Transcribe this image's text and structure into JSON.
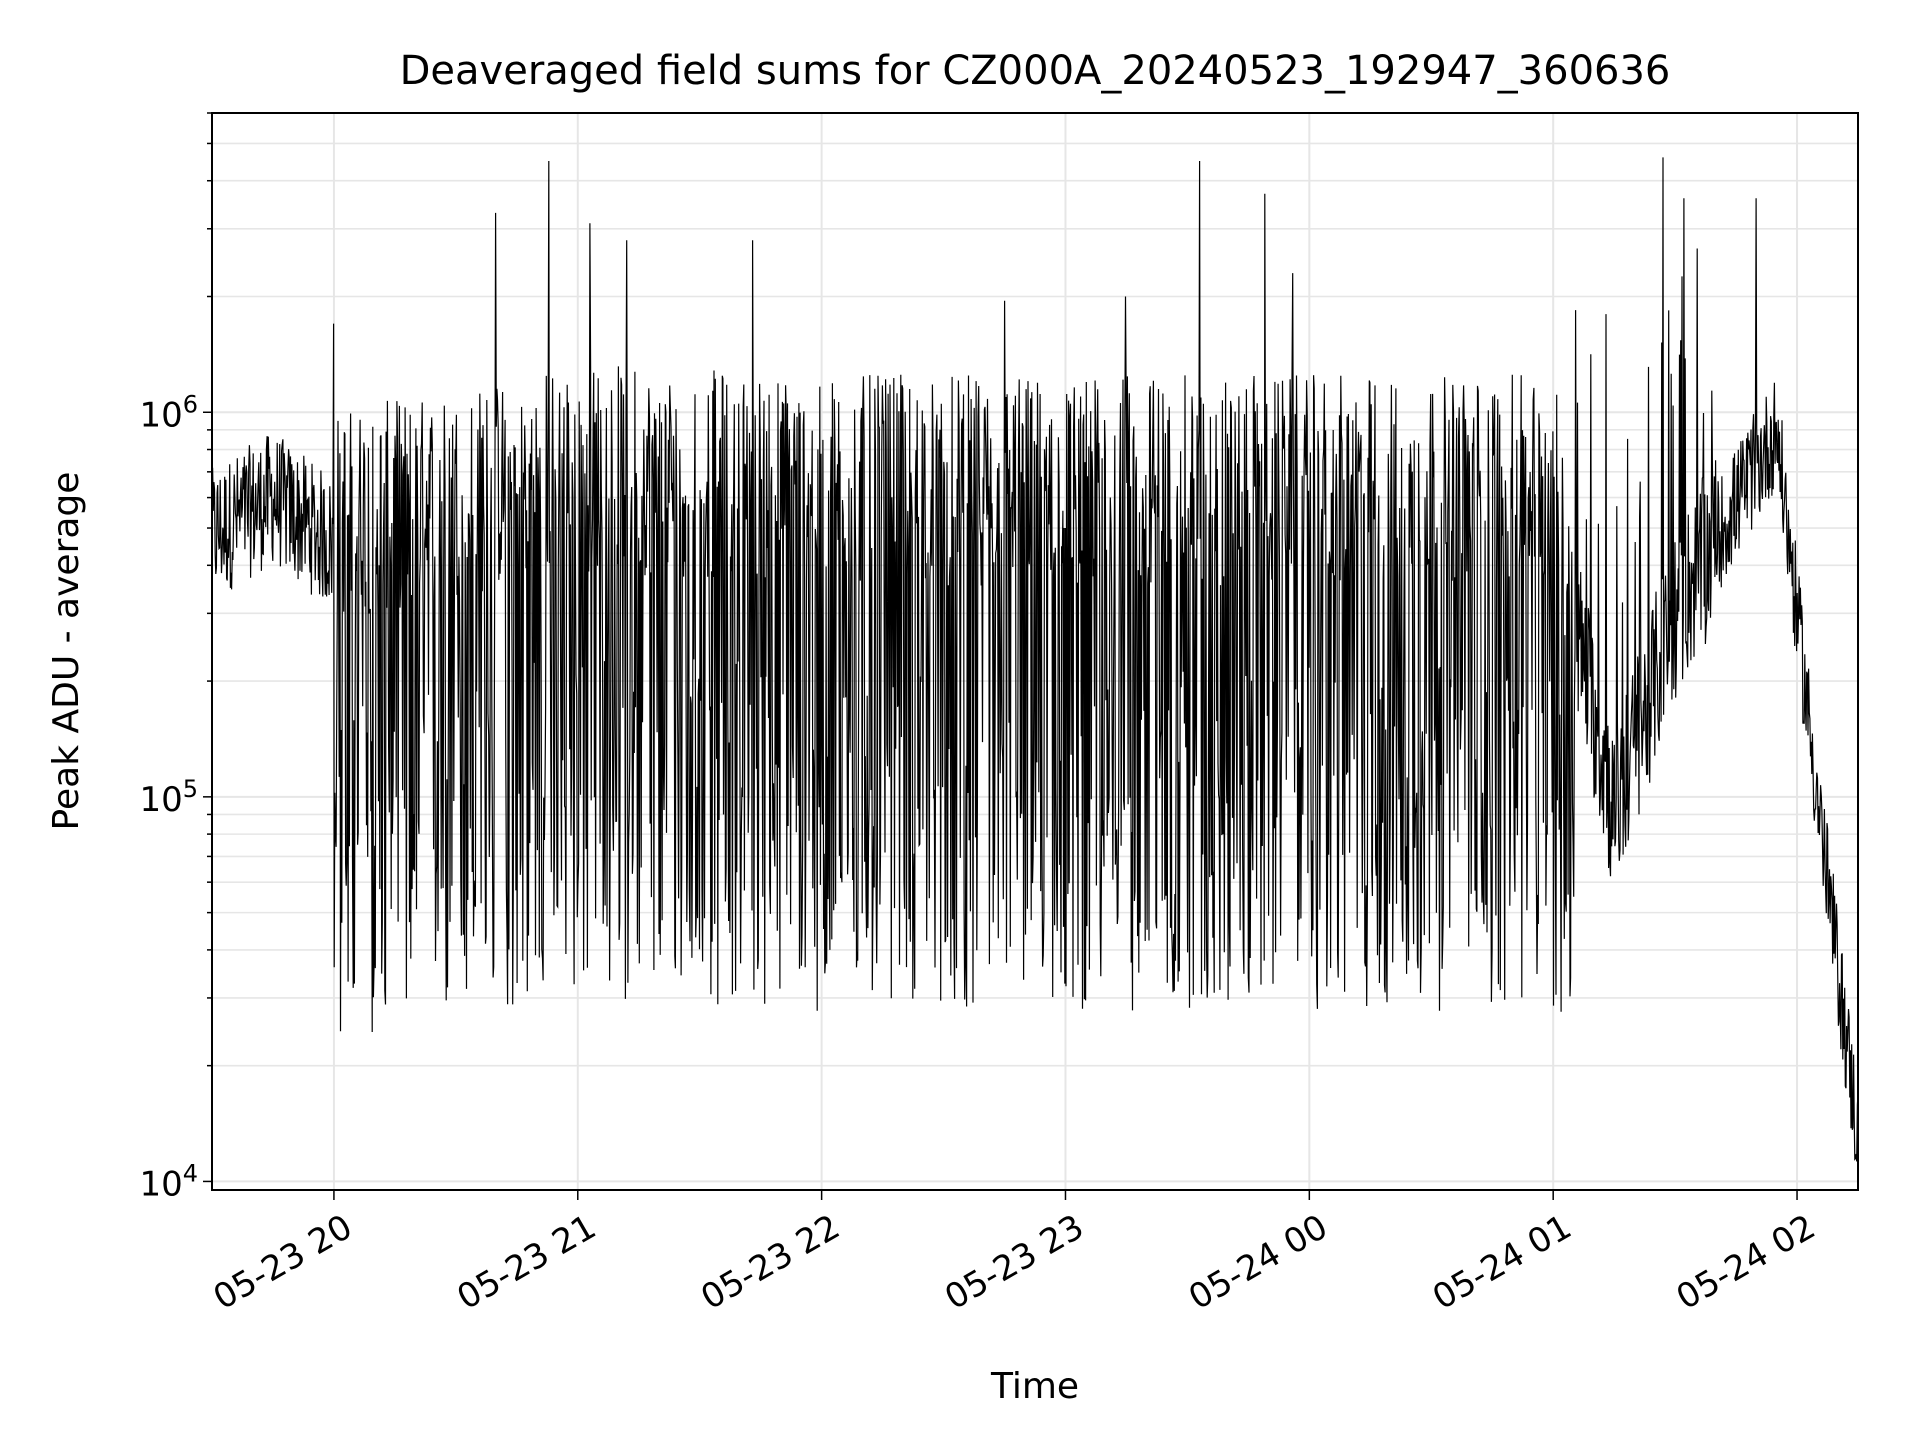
{
  "chart_data": {
    "type": "line",
    "title": "Deaveraged field sums for CZ000A_20240523_192947_360636",
    "xlabel": "Time",
    "ylabel": "Peak ADU - average",
    "yscale": "log",
    "ylim": [
      9500,
      6000000
    ],
    "xlim": [
      "2024-05-23 19:30",
      "2024-05-24 02:15"
    ],
    "grid": true,
    "x_ticks": [
      "05-23 20",
      "05-23 21",
      "05-23 22",
      "05-23 23",
      "05-24 00",
      "05-24 01",
      "05-24 02"
    ],
    "y_ticks": [
      {
        "base": "10",
        "exp": "4",
        "value": 10000
      },
      {
        "base": "10",
        "exp": "5",
        "value": 100000
      },
      {
        "base": "10",
        "exp": "6",
        "value": 1000000
      }
    ],
    "series": [
      {
        "color": "#000000",
        "description_points": [
          {
            "x": "2024-05-23 19:30",
            "y": 480000
          },
          {
            "x": "2024-05-23 19:45",
            "y": 600000
          },
          {
            "x": "2024-05-23 20:00",
            "y": 450000
          },
          {
            "x": "2024-05-23 20:30",
            "y": 500000
          },
          {
            "x": "2024-05-23 21:00",
            "y": 600000
          },
          {
            "x": "2024-05-23 22:00",
            "y": 550000
          },
          {
            "x": "2024-05-23 23:00",
            "y": 550000
          },
          {
            "x": "2024-05-24 00:00",
            "y": 550000
          },
          {
            "x": "2024-05-24 01:00",
            "y": 550000
          },
          {
            "x": "2024-05-24 01:15",
            "y": 90000
          },
          {
            "x": "2024-05-24 01:30",
            "y": 300000
          },
          {
            "x": "2024-05-24 01:55",
            "y": 900000
          },
          {
            "x": "2024-05-24 02:05",
            "y": 100000
          },
          {
            "x": "2024-05-24 02:15",
            "y": 13000
          }
        ],
        "spikes": [
          {
            "x": "2024-05-23 20:00",
            "y": 1700000
          },
          {
            "x": "2024-05-23 20:40",
            "y": 3300000
          },
          {
            "x": "2024-05-23 20:53",
            "y": 4500000
          },
          {
            "x": "2024-05-23 21:03",
            "y": 3100000
          },
          {
            "x": "2024-05-23 21:12",
            "y": 2800000
          },
          {
            "x": "2024-05-23 21:43",
            "y": 2800000
          },
          {
            "x": "2024-05-23 22:45",
            "y": 1950000
          },
          {
            "x": "2024-05-23 23:15",
            "y": 2000000
          },
          {
            "x": "2024-05-23 23:33",
            "y": 4500000
          },
          {
            "x": "2024-05-23 23:49",
            "y": 3700000
          },
          {
            "x": "2024-05-23 23:56",
            "y": 2300000
          },
          {
            "x": "2024-05-24 01:13",
            "y": 1800000
          },
          {
            "x": "2024-05-24 01:27",
            "y": 4600000
          },
          {
            "x": "2024-05-24 01:50",
            "y": 3600000
          }
        ],
        "dips": [
          {
            "x": "2024-05-23 20:25",
            "y": 63000
          },
          {
            "x": "2024-05-23 21:20",
            "y": 44000
          },
          {
            "x": "2024-05-23 21:33",
            "y": 42000
          },
          {
            "x": "2024-05-23 22:02",
            "y": 40000
          },
          {
            "x": "2024-05-23 22:28",
            "y": 36000
          },
          {
            "x": "2024-05-23 23:43",
            "y": 45000
          },
          {
            "x": "2024-05-24 00:23",
            "y": 42000
          },
          {
            "x": "2024-05-24 01:05",
            "y": 55000
          }
        ]
      }
    ]
  }
}
